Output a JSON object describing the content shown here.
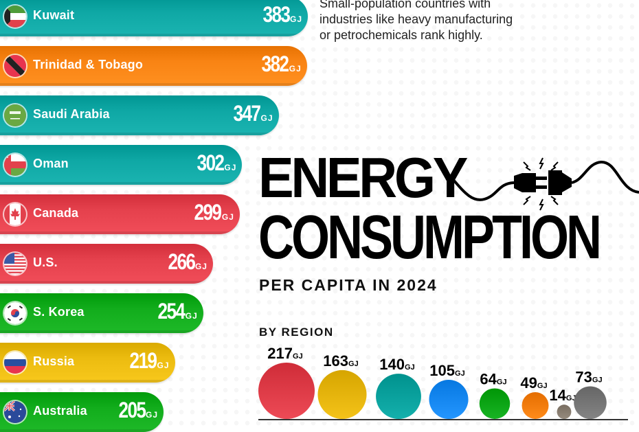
{
  "intro_text": {
    "line1": "Small-population countries with",
    "line2": "industries like heavy manufacturing",
    "line3": "or petrochemicals rank highly."
  },
  "title": {
    "line1": "ENERGY",
    "line2": "CONSUMPTION",
    "subtitle": "PER CAPITA IN 2024"
  },
  "region_section_label": "BY REGION",
  "unit": "GJ",
  "icons": {
    "plug": "unplugged-cord-icon"
  },
  "chart_data": [
    {
      "type": "bar",
      "orientation": "horizontal",
      "title": "Energy Consumption Per Capita in 2024",
      "unit": "GJ",
      "categories": [
        "Kuwait",
        "Trinidad & Tobago",
        "Saudi Arabia",
        "Oman",
        "Canada",
        "U.S.",
        "S. Korea",
        "Russia",
        "Australia"
      ],
      "values": [
        383,
        382,
        347,
        302,
        299,
        266,
        254,
        219,
        205
      ],
      "value_labels": [
        "383",
        "382",
        "347",
        "302",
        "299",
        "266",
        "254",
        "219",
        "205"
      ],
      "colors": [
        "#0fa8a5",
        "#f98414",
        "#0fa8a5",
        "#0fa8a5",
        "#e5414d",
        "#e5414d",
        "#12ad1c",
        "#ecbc10",
        "#12ad1c"
      ],
      "flags": [
        "kuwait-flag-icon",
        "trinidad-tobago-flag-icon",
        "saudi-arabia-flag-icon",
        "oman-flag-icon",
        "canada-flag-icon",
        "us-flag-icon",
        "south-korea-flag-icon",
        "russia-flag-icon",
        "australia-flag-icon"
      ]
    },
    {
      "type": "bubble",
      "title": "By Region",
      "unit": "GJ",
      "values": [
        217,
        163,
        140,
        105,
        64,
        49,
        14,
        73
      ],
      "value_labels": [
        "217",
        "163",
        "140",
        "105",
        "64",
        "49",
        "14",
        "73"
      ],
      "colors": [
        "#e3404c",
        "#eab90f",
        "#0aa6a2",
        "#1a8cf5",
        "#0eaa1a",
        "#f88110",
        "#8c8174",
        "#7a7a7a"
      ]
    }
  ]
}
